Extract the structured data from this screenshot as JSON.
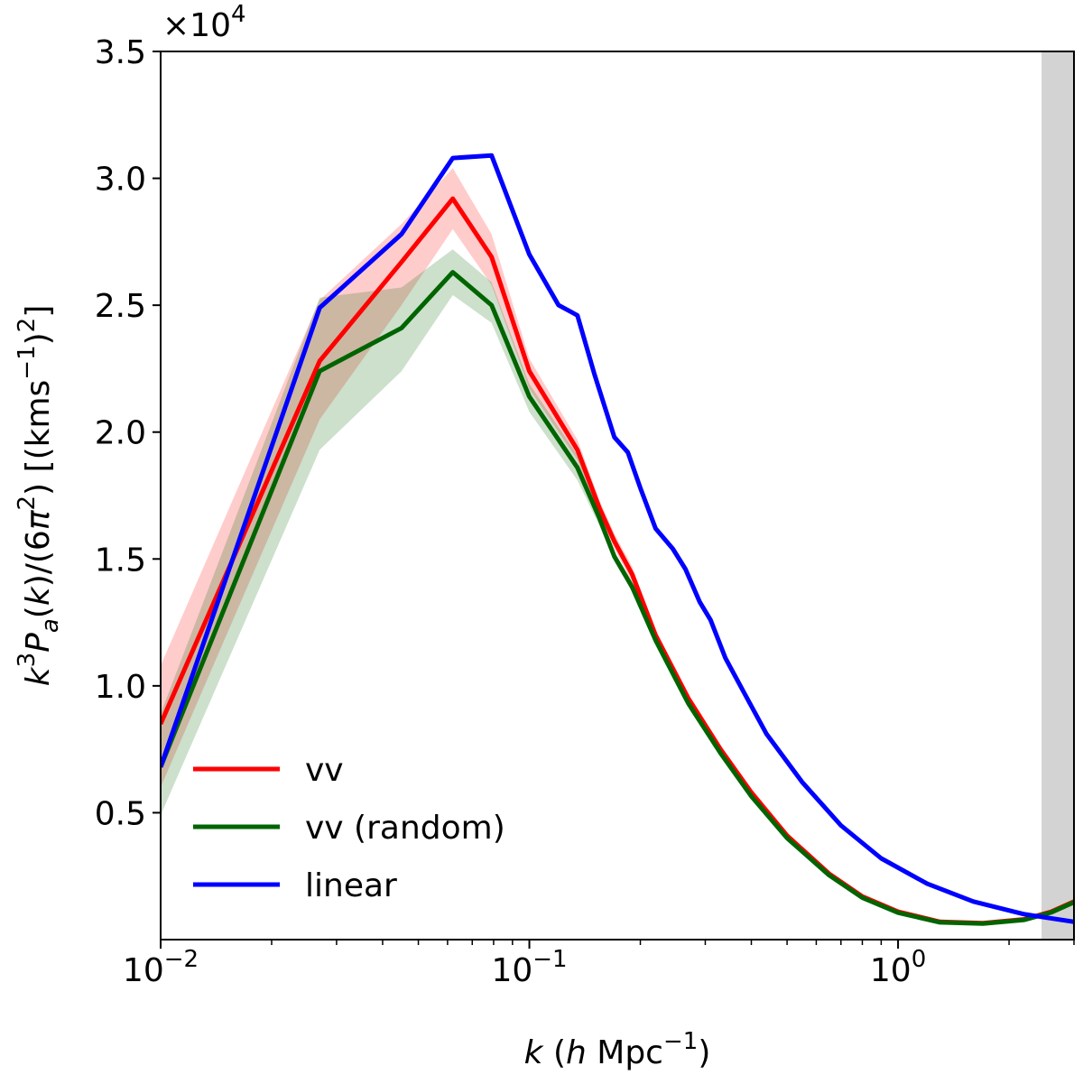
{
  "chart_data": {
    "type": "line",
    "xscale": "log",
    "xlim": [
      0.01,
      3.0
    ],
    "ylim": [
      0,
      35000
    ],
    "offset_label": "×10",
    "offset_exponent": "4",
    "xlabel": {
      "var": "k",
      "open": " (",
      "h": "h",
      "unit": " Mpc",
      "exp": "−1",
      "close": ")"
    },
    "ylabel": {
      "a": "k",
      "b": "3",
      "c": "P",
      "d": "a",
      "e": "(",
      "f": "k",
      "g": ")/(6",
      "h": "π",
      "i": "2",
      "j": ") [(kms",
      "k": "−1",
      "l": ")",
      "m": "2",
      "n": "]"
    },
    "xticks": [
      {
        "value": 0.01,
        "base": "10",
        "exp": "−2"
      },
      {
        "value": 0.1,
        "base": "10",
        "exp": "−1"
      },
      {
        "value": 1.0,
        "base": "10",
        "exp": "0"
      }
    ],
    "yticks": [
      {
        "value": 5000,
        "label": "0.5"
      },
      {
        "value": 10000,
        "label": "1.0"
      },
      {
        "value": 15000,
        "label": "1.5"
      },
      {
        "value": 20000,
        "label": "2.0"
      },
      {
        "value": 25000,
        "label": "2.5"
      },
      {
        "value": 30000,
        "label": "3.0"
      },
      {
        "value": 35000,
        "label": "3.5"
      }
    ],
    "shaded_region": {
      "from": 2.45,
      "to": 3.0,
      "color": "#d3d3d3"
    },
    "legend_position": "lower-left",
    "series": [
      {
        "name": "vv",
        "color": "#ff0000",
        "x": [
          0.01,
          0.027,
          0.045,
          0.062,
          0.079,
          0.1,
          0.135,
          0.155,
          0.17,
          0.19,
          0.22,
          0.27,
          0.33,
          0.4,
          0.5,
          0.65,
          0.8,
          1.0,
          1.3,
          1.7,
          2.2,
          2.6,
          3.0
        ],
        "y": [
          8500,
          22800,
          26700,
          29200,
          26900,
          22400,
          19300,
          17000,
          15700,
          14400,
          12000,
          9500,
          7500,
          5800,
          4100,
          2600,
          1700,
          1100,
          700,
          650,
          800,
          1100,
          1500
        ],
        "band_low": [
          6000,
          20500,
          25000,
          28000,
          25800,
          21700,
          18900,
          16700,
          15400,
          14100,
          11800,
          9400,
          7400,
          5700,
          4050,
          2560,
          1670,
          1080,
          690,
          640,
          790,
          1080,
          1480
        ],
        "band_high": [
          10800,
          25200,
          28200,
          30400,
          27800,
          22900,
          19700,
          17300,
          16000,
          14700,
          12200,
          9650,
          7600,
          5900,
          4150,
          2640,
          1730,
          1120,
          710,
          660,
          810,
          1120,
          1520
        ]
      },
      {
        "name": "vv (random)",
        "color": "#006400",
        "x": [
          0.01,
          0.027,
          0.045,
          0.062,
          0.079,
          0.1,
          0.135,
          0.155,
          0.17,
          0.19,
          0.22,
          0.27,
          0.33,
          0.4,
          0.5,
          0.65,
          0.8,
          1.0,
          1.3,
          1.7,
          2.2,
          2.6,
          3.0
        ],
        "y": [
          6800,
          22400,
          24100,
          26300,
          25000,
          21400,
          18600,
          16600,
          15100,
          13900,
          11800,
          9300,
          7350,
          5650,
          4000,
          2540,
          1650,
          1060,
          680,
          630,
          780,
          1070,
          1470
        ],
        "band_low": [
          4900,
          19300,
          22400,
          25400,
          24300,
          20800,
          18100,
          16300,
          14900,
          13700,
          11650,
          9200,
          7270,
          5590,
          3960,
          2510,
          1630,
          1040,
          670,
          620,
          770,
          1060,
          1450
        ],
        "band_high": [
          8900,
          25300,
          25700,
          27200,
          25900,
          21900,
          19100,
          16900,
          15300,
          14100,
          11950,
          9400,
          7430,
          5710,
          4040,
          2570,
          1670,
          1080,
          690,
          640,
          790,
          1080,
          1490
        ]
      },
      {
        "name": "linear",
        "color": "#0000ff",
        "x": [
          0.01,
          0.027,
          0.045,
          0.062,
          0.079,
          0.1,
          0.12,
          0.135,
          0.15,
          0.17,
          0.185,
          0.2,
          0.22,
          0.245,
          0.265,
          0.29,
          0.31,
          0.34,
          0.38,
          0.44,
          0.55,
          0.7,
          0.9,
          1.2,
          1.6,
          2.2,
          3.0
        ],
        "y": [
          6800,
          24900,
          27800,
          30800,
          30900,
          27000,
          25000,
          24600,
          22300,
          19800,
          19200,
          17800,
          16200,
          15400,
          14600,
          13300,
          12600,
          11100,
          9800,
          8100,
          6200,
          4500,
          3200,
          2200,
          1500,
          1000,
          700
        ]
      }
    ]
  }
}
